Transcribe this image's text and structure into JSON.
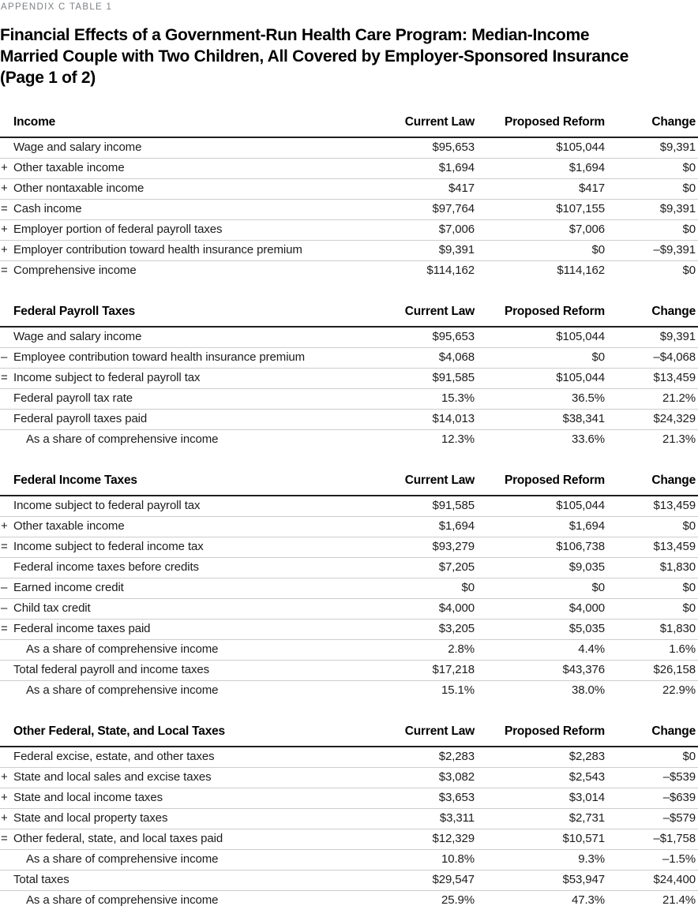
{
  "eyebrow": "APPENDIX C TABLE 1",
  "title_lines": [
    "Financial Effects of a Government-Run Health Care Program: Median-Income",
    "Married Couple with Two Children, All Covered by Employer-Sponsored Insurance",
    "(Page 1 of 2)"
  ],
  "columns": [
    "Current Law",
    "Proposed Reform",
    "Change"
  ],
  "sections": [
    {
      "title": "Income",
      "rows": [
        {
          "op": "",
          "indent": false,
          "label": "Wage and salary income",
          "values": [
            "$95,653",
            "$105,044",
            "$9,391"
          ]
        },
        {
          "op": "+",
          "indent": false,
          "label": "Other taxable income",
          "values": [
            "$1,694",
            "$1,694",
            "$0"
          ]
        },
        {
          "op": "+",
          "indent": false,
          "label": "Other nontaxable income",
          "values": [
            "$417",
            "$417",
            "$0"
          ]
        },
        {
          "op": "=",
          "indent": false,
          "label": "Cash income",
          "values": [
            "$97,764",
            "$107,155",
            "$9,391"
          ]
        },
        {
          "op": "+",
          "indent": false,
          "label": "Employer portion of federal payroll taxes",
          "values": [
            "$7,006",
            "$7,006",
            "$0"
          ]
        },
        {
          "op": "+",
          "indent": false,
          "label": "Employer contribution toward health insurance premium",
          "values": [
            "$9,391",
            "$0",
            "–$9,391"
          ]
        },
        {
          "op": "=",
          "indent": false,
          "label": "Comprehensive income",
          "values": [
            "$114,162",
            "$114,162",
            "$0"
          ]
        }
      ]
    },
    {
      "title": "Federal Payroll Taxes",
      "rows": [
        {
          "op": "",
          "indent": false,
          "label": "Wage and salary income",
          "values": [
            "$95,653",
            "$105,044",
            "$9,391"
          ]
        },
        {
          "op": "–",
          "indent": false,
          "label": "Employee contribution toward health insurance premium",
          "values": [
            "$4,068",
            "$0",
            "–$4,068"
          ]
        },
        {
          "op": "=",
          "indent": false,
          "label": "Income subject to federal payroll tax",
          "values": [
            "$91,585",
            "$105,044",
            "$13,459"
          ]
        },
        {
          "op": "",
          "indent": false,
          "label": "Federal payroll tax rate",
          "values": [
            "15.3%",
            "36.5%",
            "21.2%"
          ]
        },
        {
          "op": "",
          "indent": false,
          "label": "Federal payroll taxes paid",
          "values": [
            "$14,013",
            "$38,341",
            "$24,329"
          ]
        },
        {
          "op": "",
          "indent": true,
          "label": "As a share of comprehensive income",
          "values": [
            "12.3%",
            "33.6%",
            "21.3%"
          ]
        }
      ]
    },
    {
      "title": "Federal Income Taxes",
      "rows": [
        {
          "op": "",
          "indent": false,
          "label": "Income subject to federal payroll tax",
          "values": [
            "$91,585",
            "$105,044",
            "$13,459"
          ]
        },
        {
          "op": "+",
          "indent": false,
          "label": "Other taxable income",
          "values": [
            "$1,694",
            "$1,694",
            "$0"
          ]
        },
        {
          "op": "=",
          "indent": false,
          "label": "Income subject to federal income tax",
          "values": [
            "$93,279",
            "$106,738",
            "$13,459"
          ]
        },
        {
          "op": "",
          "indent": false,
          "label": "Federal income taxes before credits",
          "values": [
            "$7,205",
            "$9,035",
            "$1,830"
          ]
        },
        {
          "op": "–",
          "indent": false,
          "label": "Earned income credit",
          "values": [
            "$0",
            "$0",
            "$0"
          ]
        },
        {
          "op": "–",
          "indent": false,
          "label": "Child tax credit",
          "values": [
            "$4,000",
            "$4,000",
            "$0"
          ]
        },
        {
          "op": "=",
          "indent": false,
          "label": "Federal income taxes paid",
          "values": [
            "$3,205",
            "$5,035",
            "$1,830"
          ]
        },
        {
          "op": "",
          "indent": true,
          "label": "As a share of comprehensive income",
          "values": [
            "2.8%",
            "4.4%",
            "1.6%"
          ]
        },
        {
          "op": "",
          "indent": false,
          "label": "Total federal payroll and income taxes",
          "values": [
            "$17,218",
            "$43,376",
            "$26,158"
          ]
        },
        {
          "op": "",
          "indent": true,
          "label": "As a share of comprehensive income",
          "values": [
            "15.1%",
            "38.0%",
            "22.9%"
          ]
        }
      ]
    },
    {
      "title": "Other Federal, State, and Local Taxes",
      "rows": [
        {
          "op": "",
          "indent": false,
          "label": "Federal excise, estate, and other taxes",
          "values": [
            "$2,283",
            "$2,283",
            "$0"
          ]
        },
        {
          "op": "+",
          "indent": false,
          "label": "State and local sales and excise taxes",
          "values": [
            "$3,082",
            "$2,543",
            "–$539"
          ]
        },
        {
          "op": "+",
          "indent": false,
          "label": "State and local income taxes",
          "values": [
            "$3,653",
            "$3,014",
            "–$639"
          ]
        },
        {
          "op": "+",
          "indent": false,
          "label": "State and local property taxes",
          "values": [
            "$3,311",
            "$2,731",
            "–$579"
          ]
        },
        {
          "op": "=",
          "indent": false,
          "label": "Other federal, state, and local taxes paid",
          "values": [
            "$12,329",
            "$10,571",
            "–$1,758"
          ]
        },
        {
          "op": "",
          "indent": true,
          "label": "As a share of comprehensive income",
          "values": [
            "10.8%",
            "9.3%",
            "–1.5%"
          ]
        },
        {
          "op": "",
          "indent": false,
          "label": "Total taxes",
          "values": [
            "$29,547",
            "$53,947",
            "$24,400"
          ]
        },
        {
          "op": "",
          "indent": true,
          "label": "As a share of comprehensive income",
          "values": [
            "25.9%",
            "47.3%",
            "21.4%"
          ]
        }
      ]
    }
  ]
}
